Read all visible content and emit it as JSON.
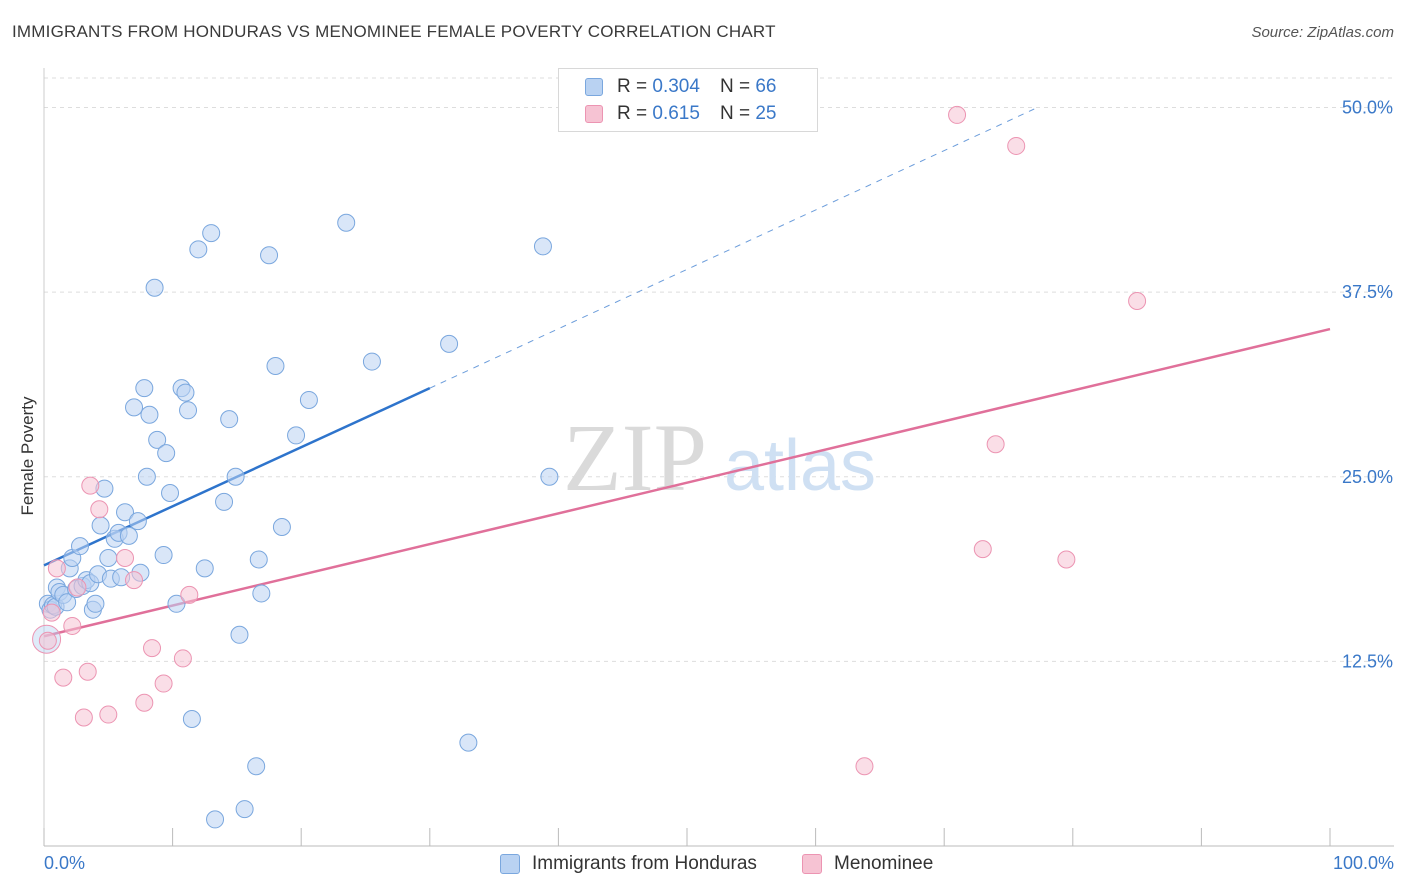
{
  "title": "IMMIGRANTS FROM HONDURAS VS MENOMINEE FEMALE POVERTY CORRELATION CHART",
  "source": "Source: ZipAtlas.com",
  "watermark": {
    "zip": "ZIP",
    "atlas": "atlas"
  },
  "legend_top": {
    "rows": [
      {
        "r_label": "R =",
        "r_value": "0.304",
        "n_label": "N =",
        "n_value": "66"
      },
      {
        "r_label": "R =",
        "r_value": "0.615",
        "n_label": "N =",
        "n_value": "25"
      }
    ]
  },
  "colors": {
    "blue_fill": "#b9d2f2",
    "blue_stroke": "#7aa7de",
    "blue_line": "#2e74cc",
    "pink_fill": "#f6c3d3",
    "pink_stroke": "#ec94b2",
    "pink_line": "#e0709a",
    "tick_text": "#3a78c8",
    "grid": "#dddddd"
  },
  "chart_data": {
    "type": "scatter",
    "title": "IMMIGRANTS FROM HONDURAS VS MENOMINEE FEMALE POVERTY CORRELATION CHART",
    "xlabel": "",
    "ylabel": "Female Poverty",
    "xlim": [
      0,
      100
    ],
    "ylim": [
      0,
      52
    ],
    "x_tick_labels": [
      "0.0%",
      "100.0%"
    ],
    "y_ticks": [
      12.5,
      25.0,
      37.5,
      50.0
    ],
    "y_tick_labels": [
      "12.5%",
      "25.0%",
      "37.5%",
      "50.0%"
    ],
    "grid": "horizontal dashed",
    "legend": "bottom-center",
    "series": [
      {
        "name": "Immigrants from Honduras",
        "color": "#b9d2f2",
        "trend": {
          "x": [
            0,
            30
          ],
          "y": [
            19.0,
            31.0
          ],
          "dashed_extension_to": [
            77,
            49.9
          ]
        },
        "points": [
          [
            0.3,
            16.4
          ],
          [
            0.5,
            16.0
          ],
          [
            0.7,
            16.3
          ],
          [
            0.9,
            16.2
          ],
          [
            1.0,
            17.5
          ],
          [
            1.2,
            17.2
          ],
          [
            1.5,
            17.0
          ],
          [
            1.8,
            16.5
          ],
          [
            2.0,
            18.8
          ],
          [
            2.2,
            19.5
          ],
          [
            2.5,
            17.4
          ],
          [
            2.8,
            20.3
          ],
          [
            3.0,
            17.6
          ],
          [
            3.3,
            18.0
          ],
          [
            3.6,
            17.8
          ],
          [
            3.8,
            16.0
          ],
          [
            4.0,
            16.4
          ],
          [
            4.2,
            18.4
          ],
          [
            4.4,
            21.7
          ],
          [
            4.7,
            24.2
          ],
          [
            5.0,
            19.5
          ],
          [
            5.2,
            18.1
          ],
          [
            5.5,
            20.8
          ],
          [
            5.8,
            21.2
          ],
          [
            6.0,
            18.2
          ],
          [
            6.3,
            22.6
          ],
          [
            6.6,
            21.0
          ],
          [
            7.0,
            29.7
          ],
          [
            7.3,
            22.0
          ],
          [
            7.5,
            18.5
          ],
          [
            7.8,
            31.0
          ],
          [
            8.0,
            25.0
          ],
          [
            8.2,
            29.2
          ],
          [
            8.6,
            37.8
          ],
          [
            8.8,
            27.5
          ],
          [
            9.3,
            19.7
          ],
          [
            9.5,
            26.6
          ],
          [
            9.8,
            23.9
          ],
          [
            10.3,
            16.4
          ],
          [
            10.7,
            31.0
          ],
          [
            11.0,
            30.7
          ],
          [
            11.2,
            29.5
          ],
          [
            11.5,
            8.6
          ],
          [
            12.0,
            40.4
          ],
          [
            12.5,
            18.8
          ],
          [
            13.0,
            41.5
          ],
          [
            13.3,
            1.8
          ],
          [
            14.0,
            23.3
          ],
          [
            14.4,
            28.9
          ],
          [
            14.9,
            25.0
          ],
          [
            15.2,
            14.3
          ],
          [
            15.6,
            2.5
          ],
          [
            16.5,
            5.4
          ],
          [
            16.7,
            19.4
          ],
          [
            16.9,
            17.1
          ],
          [
            17.5,
            40.0
          ],
          [
            18.0,
            32.5
          ],
          [
            18.5,
            21.6
          ],
          [
            19.6,
            27.8
          ],
          [
            20.6,
            30.2
          ],
          [
            23.5,
            42.2
          ],
          [
            25.5,
            32.8
          ],
          [
            31.5,
            34.0
          ],
          [
            33.0,
            7.0
          ],
          [
            38.8,
            40.6
          ],
          [
            39.3,
            25.0
          ]
        ]
      },
      {
        "name": "Menominee",
        "color": "#f6c3d3",
        "trend": {
          "x": [
            0,
            100
          ],
          "y": [
            14.2,
            35.0
          ]
        },
        "points": [
          [
            0.3,
            13.9
          ],
          [
            0.6,
            15.8
          ],
          [
            1.0,
            18.8
          ],
          [
            1.5,
            11.4
          ],
          [
            2.2,
            14.9
          ],
          [
            2.6,
            17.5
          ],
          [
            3.1,
            8.7
          ],
          [
            3.4,
            11.8
          ],
          [
            3.6,
            24.4
          ],
          [
            4.3,
            22.8
          ],
          [
            5.0,
            8.9
          ],
          [
            6.3,
            19.5
          ],
          [
            7.0,
            18.0
          ],
          [
            7.8,
            9.7
          ],
          [
            8.4,
            13.4
          ],
          [
            9.3,
            11.0
          ],
          [
            10.8,
            12.7
          ],
          [
            11.3,
            17.0
          ],
          [
            63.8,
            5.4
          ],
          [
            71.0,
            49.5
          ],
          [
            73.0,
            20.1
          ],
          [
            74.0,
            27.2
          ],
          [
            75.6,
            47.4
          ],
          [
            79.5,
            19.4
          ],
          [
            85.0,
            36.9
          ]
        ]
      }
    ]
  },
  "bottom_legend": [
    {
      "label": "Immigrants from Honduras"
    },
    {
      "label": "Menominee"
    }
  ]
}
